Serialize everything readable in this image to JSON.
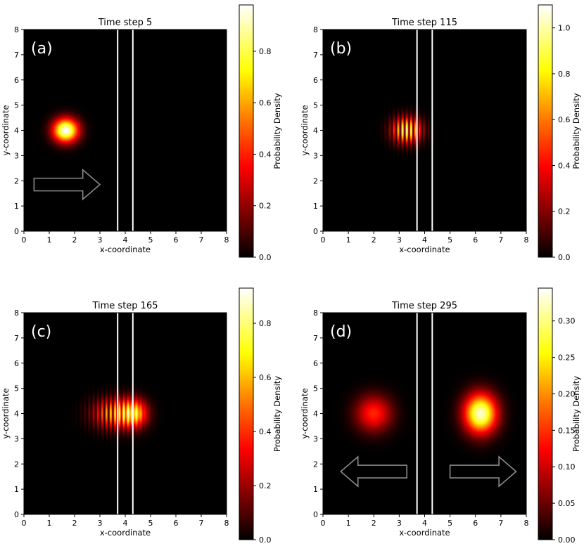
{
  "chart_data": [
    {
      "type": "heatmap",
      "panel_label": "(a)",
      "title": "Time step 5",
      "xlabel": "x-coordinate",
      "ylabel": "y-coordinate",
      "xlim": [
        0,
        8
      ],
      "ylim": [
        0,
        8
      ],
      "x_ticks": [
        "0",
        "1",
        "2",
        "3",
        "4",
        "5",
        "6",
        "7",
        "8"
      ],
      "y_ticks": [
        "0",
        "1",
        "2",
        "3",
        "4",
        "5",
        "6",
        "7",
        "8"
      ],
      "colormap": "hot",
      "colorbar_label": "Probability Density",
      "colorbar_range": [
        0,
        0.98
      ],
      "colorbar_ticks": [
        "0.0",
        "0.2",
        "0.4",
        "0.6",
        "0.8"
      ],
      "barrier_x": [
        3.7,
        4.3
      ],
      "blobs": [
        {
          "x": 1.65,
          "y": 4.0,
          "sx": 0.35,
          "sy": 0.33,
          "peak": 1.0,
          "fringes": false
        }
      ],
      "arrows": [
        {
          "direction": "right",
          "x_start": 0.4,
          "x_end": 3.0,
          "y": 1.85
        }
      ]
    },
    {
      "type": "heatmap",
      "panel_label": "(b)",
      "title": "Time step 115",
      "xlabel": "x-coordinate",
      "ylabel": "y-coordinate",
      "xlim": [
        0,
        8
      ],
      "ylim": [
        0,
        8
      ],
      "x_ticks": [
        "0",
        "1",
        "2",
        "3",
        "4",
        "5",
        "6",
        "7",
        "8"
      ],
      "y_ticks": [
        "0",
        "1",
        "2",
        "3",
        "4",
        "5",
        "6",
        "7",
        "8"
      ],
      "colormap": "hot",
      "colorbar_label": "Probability Density",
      "colorbar_range": [
        0,
        1.1
      ],
      "colorbar_ticks": [
        "0.0",
        "0.2",
        "0.4",
        "0.6",
        "0.8",
        "1.0"
      ],
      "barrier_x": [
        3.7,
        4.3
      ],
      "blobs": [
        {
          "x": 3.3,
          "y": 4.0,
          "sx": 0.4,
          "sy": 0.36,
          "peak": 1.0,
          "fringes": true
        }
      ],
      "arrows": []
    },
    {
      "type": "heatmap",
      "panel_label": "(c)",
      "title": "Time step 165",
      "xlabel": "x-coordinate",
      "ylabel": "y-coordinate",
      "xlim": [
        0,
        8
      ],
      "ylim": [
        0,
        8
      ],
      "x_ticks": [
        "0",
        "1",
        "2",
        "3",
        "4",
        "5",
        "6",
        "7",
        "8"
      ],
      "y_ticks": [
        "0",
        "1",
        "2",
        "3",
        "4",
        "5",
        "6",
        "7",
        "8"
      ],
      "colormap": "hot",
      "colorbar_label": "Probability Density",
      "colorbar_range": [
        0,
        0.93
      ],
      "colorbar_ticks": [
        "0.0",
        "0.2",
        "0.4",
        "0.6",
        "0.8"
      ],
      "barrier_x": [
        3.7,
        4.3
      ],
      "blobs": [
        {
          "x": 3.6,
          "y": 4.0,
          "sx": 0.6,
          "sy": 0.42,
          "peak": 0.75,
          "fringes": true
        },
        {
          "x": 4.35,
          "y": 4.0,
          "sx": 0.35,
          "sy": 0.38,
          "peak": 0.6,
          "fringes": false
        }
      ],
      "arrows": []
    },
    {
      "type": "heatmap",
      "panel_label": "(d)",
      "title": "Time step 295",
      "xlabel": "x-coordinate",
      "ylabel": "y-coordinate",
      "xlim": [
        0,
        8
      ],
      "ylim": [
        0,
        8
      ],
      "x_ticks": [
        "0",
        "1",
        "2",
        "3",
        "4",
        "5",
        "6",
        "7",
        "8"
      ],
      "y_ticks": [
        "0",
        "1",
        "2",
        "3",
        "4",
        "5",
        "6",
        "7",
        "8"
      ],
      "colormap": "hot",
      "colorbar_label": "Probability Density",
      "colorbar_range": [
        0,
        0.345
      ],
      "colorbar_ticks": [
        "0.00",
        "0.05",
        "0.10",
        "0.15",
        "0.20",
        "0.25",
        "0.30"
      ],
      "barrier_x": [
        3.7,
        4.3
      ],
      "blobs": [
        {
          "x": 2.0,
          "y": 4.0,
          "sx": 0.5,
          "sy": 0.5,
          "peak": 0.42,
          "fringes": false
        },
        {
          "x": 6.2,
          "y": 4.0,
          "sx": 0.45,
          "sy": 0.55,
          "peak": 0.95,
          "fringes": false
        }
      ],
      "arrows": [
        {
          "direction": "left",
          "x_start": 3.3,
          "x_end": 0.7,
          "y": 1.7
        },
        {
          "direction": "right",
          "x_start": 5.0,
          "x_end": 7.6,
          "y": 1.7
        }
      ]
    }
  ]
}
